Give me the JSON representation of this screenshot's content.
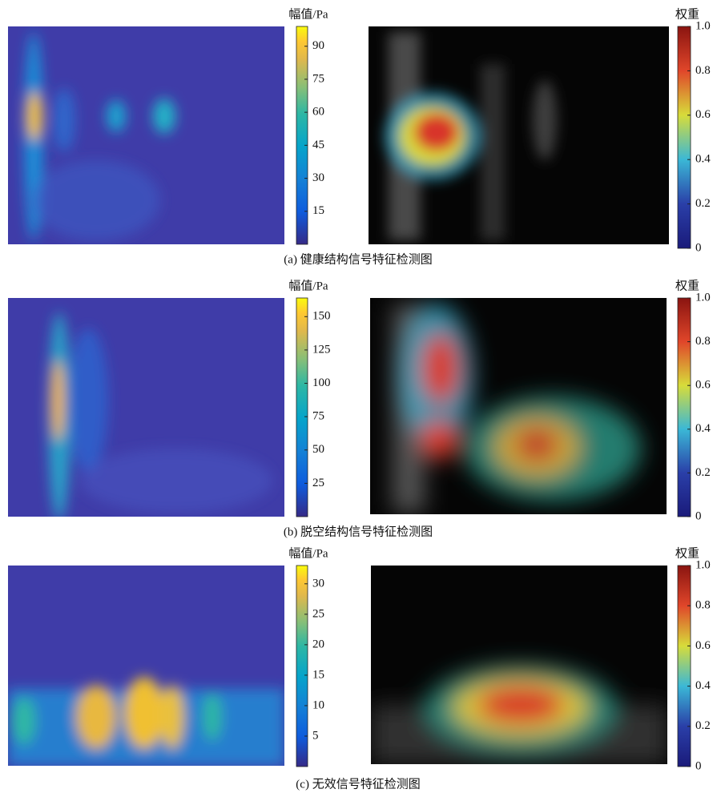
{
  "panels": [
    {
      "caption": "(a) 健康结构信号特征检测图",
      "amplitude": {
        "label": "幅值/Pa",
        "lim": [
          0,
          99
        ],
        "ticks": [
          15,
          30,
          45,
          60,
          75,
          90
        ]
      },
      "weight": {
        "label": "权重",
        "lim": [
          0,
          1
        ],
        "ticks": [
          0,
          0.2,
          0.4,
          0.6,
          0.8,
          {
            "value": 1,
            "label": "1.0"
          }
        ]
      }
    },
    {
      "caption": "(b) 脱空结构信号特征检测图",
      "amplitude": {
        "label": "幅值/Pa",
        "lim": [
          0,
          164
        ],
        "ticks": [
          25,
          50,
          75,
          100,
          125,
          150
        ]
      },
      "weight": {
        "label": "权重",
        "lim": [
          0,
          1
        ],
        "ticks": [
          0,
          0.2,
          0.4,
          0.6,
          0.8,
          {
            "value": 1,
            "label": "1.0"
          }
        ]
      }
    },
    {
      "caption": "(c) 无效信号特征检测图",
      "amplitude": {
        "label": "幅值/Pa",
        "lim": [
          0,
          33
        ],
        "ticks": [
          5,
          10,
          15,
          20,
          25,
          30
        ]
      },
      "weight": {
        "label": "权重",
        "lim": [
          0,
          1
        ],
        "ticks": [
          0,
          0.2,
          0.4,
          0.6,
          0.8,
          {
            "value": 1,
            "label": "1.0"
          }
        ]
      }
    }
  ]
}
